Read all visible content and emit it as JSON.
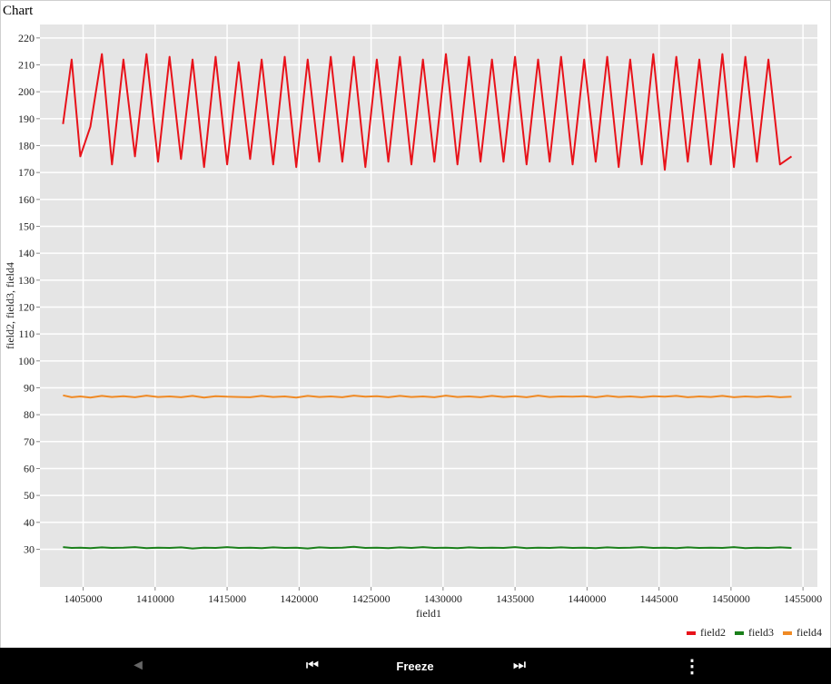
{
  "chart": {
    "title": "Chart"
  },
  "chart_data": {
    "type": "line",
    "xlabel": "field1",
    "ylabel": "field2, field3, field4",
    "xlim": [
      1402000,
      1456000
    ],
    "ylim": [
      16,
      225
    ],
    "x_ticks": [
      "1405000",
      "1410000",
      "1415000",
      "1420000",
      "1425000",
      "1430000",
      "1435000",
      "1440000",
      "1445000",
      "1450000",
      "1455000"
    ],
    "y_ticks": [
      "30",
      "40",
      "50",
      "60",
      "70",
      "80",
      "90",
      "100",
      "110",
      "120",
      "130",
      "140",
      "150",
      "160",
      "170",
      "180",
      "190",
      "200",
      "210",
      "220"
    ],
    "grid": true,
    "legend_position": "bottom-right",
    "x": [
      1403600,
      1404200,
      1404800,
      1405500,
      1406300,
      1407000,
      1407800,
      1408600,
      1409400,
      1410200,
      1411000,
      1411800,
      1412600,
      1413400,
      1414200,
      1415000,
      1415800,
      1416600,
      1417400,
      1418200,
      1419000,
      1419800,
      1420600,
      1421400,
      1422200,
      1423000,
      1423800,
      1424600,
      1425400,
      1426200,
      1427000,
      1427800,
      1428600,
      1429400,
      1430200,
      1431000,
      1431800,
      1432600,
      1433400,
      1434200,
      1435000,
      1435800,
      1436600,
      1437400,
      1438200,
      1439000,
      1439800,
      1440600,
      1441400,
      1442200,
      1443000,
      1443800,
      1444600,
      1445400,
      1446200,
      1447000,
      1447800,
      1448600,
      1449400,
      1450200,
      1451000,
      1451800,
      1452600,
      1453400,
      1454200
    ],
    "series": [
      {
        "name": "field2",
        "color": "#e8121a",
        "values": [
          188,
          212,
          176,
          187,
          214,
          173,
          212,
          176,
          214,
          174,
          213,
          175,
          212,
          172,
          213,
          173,
          211,
          175,
          212,
          173,
          213,
          172,
          212,
          174,
          213,
          174,
          213,
          172,
          212,
          174,
          213,
          173,
          212,
          174,
          214,
          173,
          213,
          174,
          212,
          174,
          213,
          173,
          212,
          174,
          213,
          173,
          212,
          174,
          213,
          172,
          212,
          173,
          214,
          171,
          213,
          174,
          212,
          173,
          214,
          172,
          213,
          174,
          212,
          173,
          176
        ]
      },
      {
        "name": "field3",
        "color": "#1a7f1a",
        "values": [
          30.8,
          30.5,
          30.6,
          30.4,
          30.7,
          30.5,
          30.6,
          30.8,
          30.4,
          30.6,
          30.5,
          30.7,
          30.3,
          30.6,
          30.5,
          30.8,
          30.5,
          30.6,
          30.4,
          30.7,
          30.5,
          30.6,
          30.3,
          30.7,
          30.5,
          30.6,
          30.9,
          30.5,
          30.6,
          30.4,
          30.7,
          30.5,
          30.8,
          30.5,
          30.6,
          30.4,
          30.7,
          30.5,
          30.6,
          30.5,
          30.8,
          30.4,
          30.6,
          30.5,
          30.7,
          30.5,
          30.6,
          30.4,
          30.7,
          30.5,
          30.6,
          30.8,
          30.5,
          30.6,
          30.4,
          30.7,
          30.5,
          30.6,
          30.5,
          30.8,
          30.4,
          30.6,
          30.5,
          30.7,
          30.5
        ]
      },
      {
        "name": "field4",
        "color": "#f08a24",
        "values": [
          87.2,
          86.5,
          86.8,
          86.4,
          87.0,
          86.6,
          86.9,
          86.5,
          87.1,
          86.6,
          86.8,
          86.5,
          87.0,
          86.4,
          86.9,
          86.7,
          86.6,
          86.5,
          87.0,
          86.6,
          86.8,
          86.4,
          87.0,
          86.6,
          86.8,
          86.5,
          87.1,
          86.7,
          86.9,
          86.5,
          87.0,
          86.6,
          86.8,
          86.5,
          87.1,
          86.6,
          86.8,
          86.5,
          87.0,
          86.6,
          86.9,
          86.5,
          87.1,
          86.6,
          86.8,
          86.7,
          86.9,
          86.5,
          87.0,
          86.6,
          86.8,
          86.5,
          86.9,
          86.7,
          87.0,
          86.5,
          86.8,
          86.6,
          87.0,
          86.5,
          86.8,
          86.6,
          86.9,
          86.5,
          86.7
        ]
      }
    ]
  },
  "controls": {
    "prev_icon": "◄",
    "first_icon": "⏮",
    "freeze_label": "Freeze",
    "last_icon": "⏭",
    "menu_icon": "⋮"
  }
}
